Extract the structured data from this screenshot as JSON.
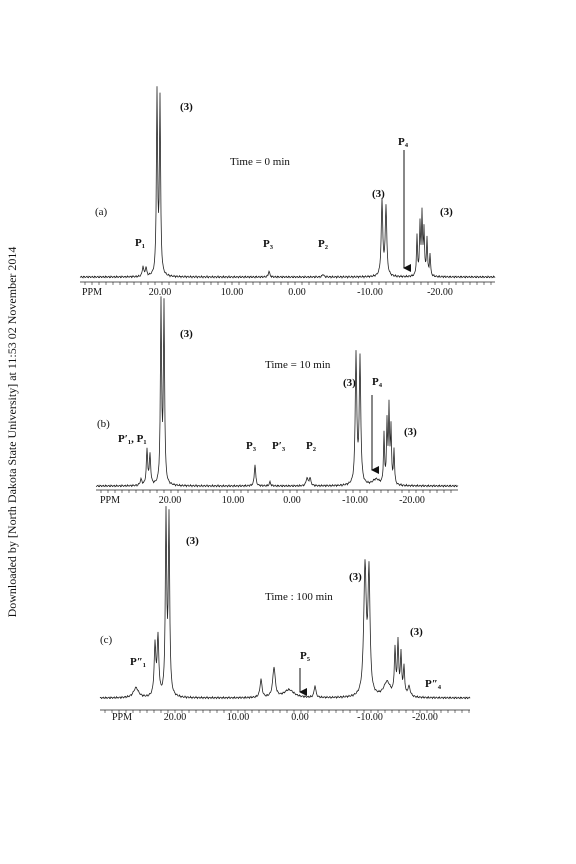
{
  "side_note": "Downloaded by [North Dakota State University] at 11:53 02 November 2014",
  "panels": [
    {
      "label": "(a)",
      "time": "Time = 0 min",
      "axis": {
        "unit": "PPM",
        "ticks": [
          "20.00",
          "10.00",
          "0.00",
          "-10.00",
          "-20.00"
        ]
      },
      "annotations": [
        "(3)",
        "P₁",
        "P₃",
        "P₂",
        "(3)",
        "P₄",
        "(3)"
      ]
    },
    {
      "label": "(b)",
      "time": "Time = 10 min",
      "axis": {
        "unit": "PPM",
        "ticks": [
          "20.00",
          "10.00",
          "0.00",
          "-10.00",
          "-20.00"
        ]
      },
      "annotations": [
        "(3)",
        "P′₁, P₁",
        "P₃",
        "P′₃",
        "P₂",
        "(3)",
        "P₄",
        "(3)"
      ]
    },
    {
      "label": "(c)",
      "time": "Time : 100 min",
      "axis": {
        "unit": "PPM",
        "ticks": [
          "20.00",
          "10.00",
          "0.00",
          "-10.00",
          "-20.00"
        ]
      },
      "annotations": [
        "(3)",
        "P″₁",
        "P₅",
        "(3)",
        "(3)",
        "P″₄"
      ]
    }
  ]
}
